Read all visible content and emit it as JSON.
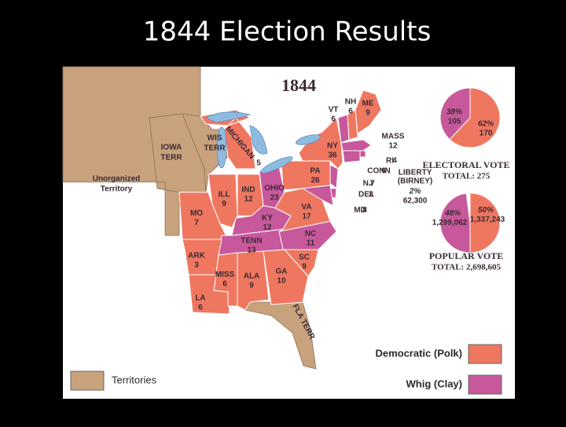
{
  "title": "1844 Election Results",
  "map": {
    "title": "1844",
    "states": [
      {
        "label": "VT",
        "votes": 6,
        "color": "#c7589b"
      },
      {
        "label": "NH",
        "votes": 6,
        "color": "#ef7760"
      },
      {
        "label": "ME",
        "votes": 9,
        "color": "#ef7760"
      },
      {
        "label": "MASS",
        "votes": 12,
        "color": "#c7589b"
      },
      {
        "label": "RI",
        "votes": 4,
        "color": "#c7589b"
      },
      {
        "label": "CONN",
        "votes": 6,
        "color": "#c7589b"
      },
      {
        "label": "NY",
        "votes": 36,
        "color": "#ef7760"
      },
      {
        "label": "NJ",
        "votes": 7,
        "color": "#c7589b"
      },
      {
        "label": "DEL",
        "votes": 3,
        "color": "#c7589b"
      },
      {
        "label": "MD",
        "votes": 8,
        "color": "#c7589b"
      },
      {
        "label": "PA",
        "votes": 26,
        "color": "#ef7760"
      },
      {
        "label": "OHIO",
        "votes": 23,
        "color": "#c7589b"
      },
      {
        "label": "IND",
        "votes": 12,
        "color": "#ef7760"
      },
      {
        "label": "ILL",
        "votes": 9,
        "color": "#ef7760"
      },
      {
        "label": "MICHIGAN",
        "votes": 5,
        "color": "#ef7760"
      },
      {
        "label": "MO",
        "votes": 7,
        "color": "#ef7760"
      },
      {
        "label": "KY",
        "votes": 12,
        "color": "#c7589b"
      },
      {
        "label": "VA",
        "votes": 17,
        "color": "#ef7760"
      },
      {
        "label": "NC",
        "votes": 11,
        "color": "#c7589b"
      },
      {
        "label": "TENN",
        "votes": 13,
        "color": "#c7589b"
      },
      {
        "label": "ARK",
        "votes": 3,
        "color": "#ef7760"
      },
      {
        "label": "LA",
        "votes": 6,
        "color": "#ef7760"
      },
      {
        "label": "MISS",
        "votes": 6,
        "color": "#ef7760"
      },
      {
        "label": "ALA",
        "votes": 9,
        "color": "#ef7760"
      },
      {
        "label": "GA",
        "votes": 10,
        "color": "#ef7760"
      },
      {
        "label": "SC",
        "votes": 9,
        "color": "#ef7760"
      }
    ],
    "territories": [
      {
        "label": [
          "IOWA",
          "TERR"
        ],
        "color": "#c8a27c"
      },
      {
        "label": [
          "WIS",
          "TERR"
        ],
        "color": "#c8a27c"
      },
      {
        "label": [
          "Unorganized",
          "Territory"
        ],
        "color": "#c8a27c"
      },
      {
        "label": [
          "FLA TERR"
        ],
        "color": "#c8a27c"
      }
    ],
    "legend": [
      {
        "label": "Democratic (Polk)",
        "color": "#ef7760"
      },
      {
        "label": "Whig (Clay)",
        "color": "#c7589b"
      },
      {
        "label": "Territories",
        "color": "#c8a27c"
      }
    ]
  },
  "pies": [
    {
      "title": "ELECTORAL VOTE",
      "total": "TOTAL: 275",
      "values": [
        62,
        38
      ],
      "value_labels": [
        "62%",
        "38%"
      ],
      "counts": [
        "170",
        "105"
      ],
      "colors": [
        "#ef7760",
        "#c7589b"
      ]
    },
    {
      "title": "POPULAR VOTE",
      "total": "TOTAL: 2,698,605",
      "values": [
        50,
        48,
        2
      ],
      "value_labels": [
        "50%",
        "48%",
        "2%"
      ],
      "counts": [
        "1,337,243",
        "1,299,062",
        "62,300"
      ],
      "colors": [
        "#ef7760",
        "#c7589b",
        "#ffffff"
      ],
      "minor_label": [
        "LIBERTY",
        "(BIRNEY)"
      ]
    }
  ]
}
